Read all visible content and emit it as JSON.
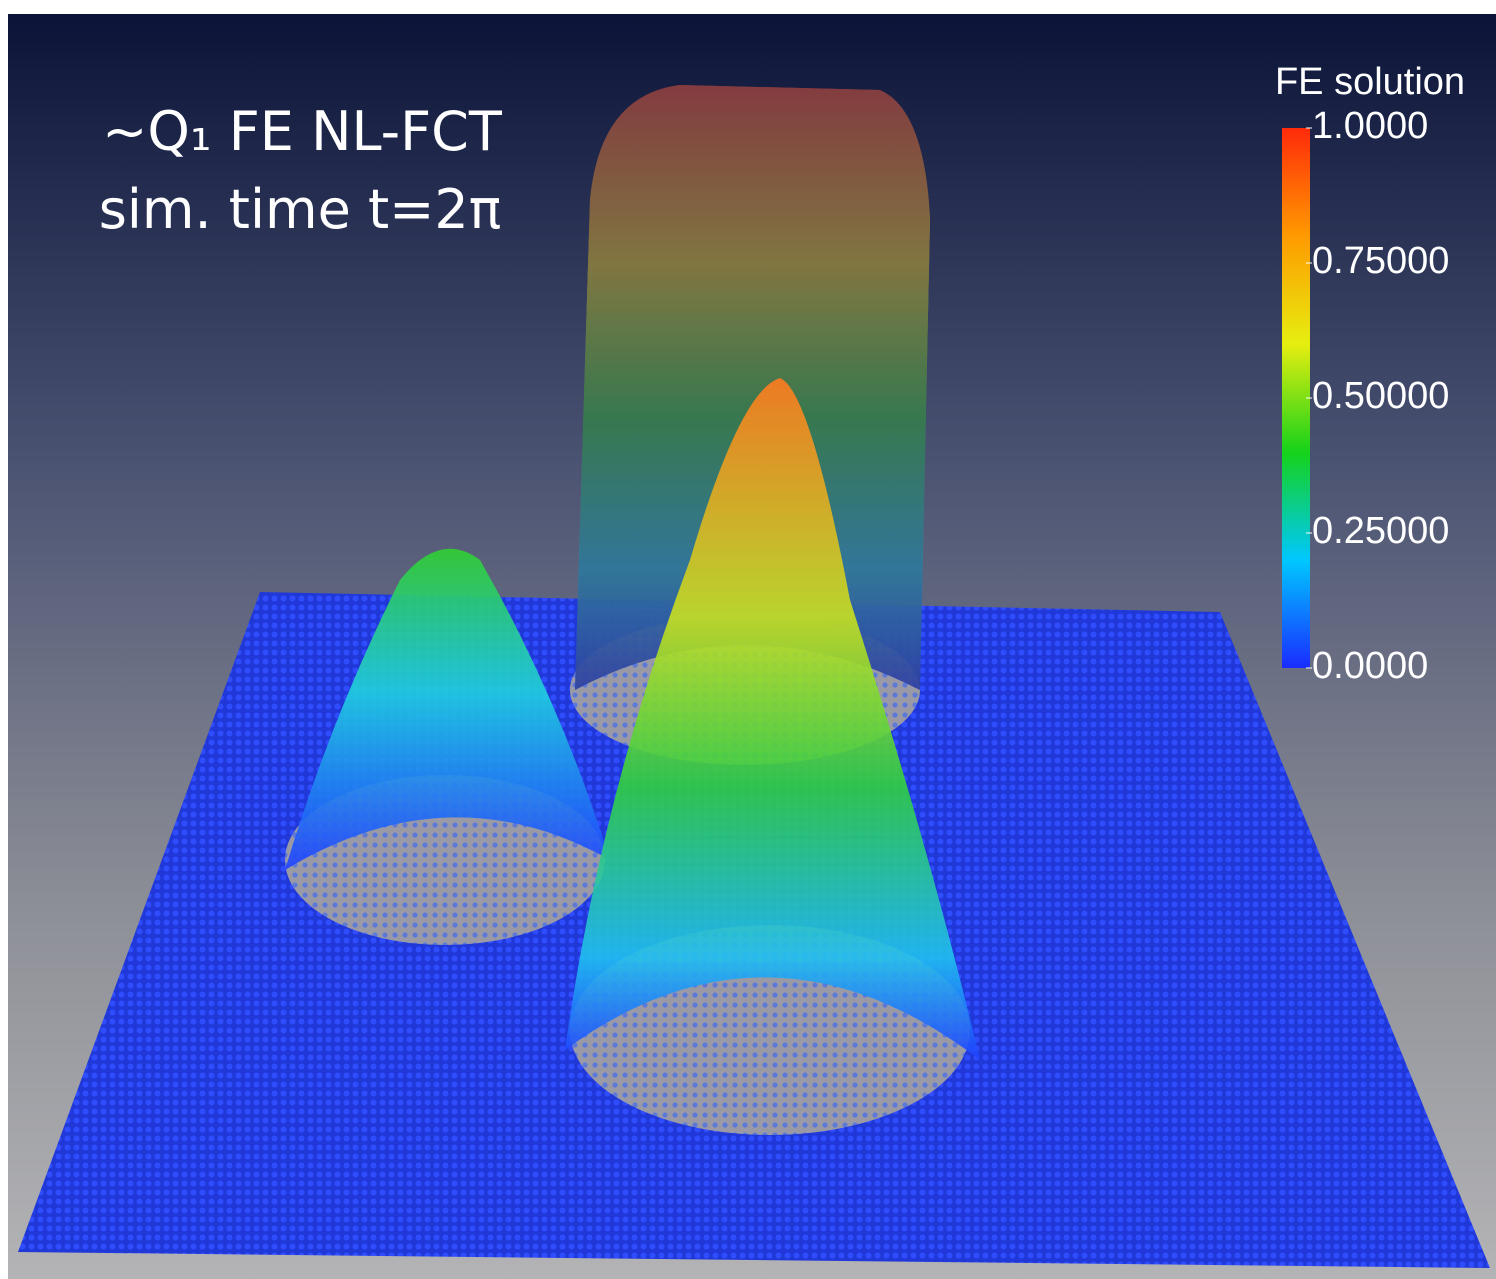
{
  "annotation": {
    "lines": [
      "~Q₁ FE NL-FCT",
      "sim. time t=2π"
    ]
  },
  "colorbar": {
    "title": "FE solution",
    "range": [
      0,
      1
    ],
    "colors": [
      "#1a2cff",
      "#00c8ff",
      "#16d21a",
      "#e6ee10",
      "#ff9a00",
      "#ff2a0a"
    ],
    "ticks": [
      {
        "value": 1,
        "label": "1.0000"
      },
      {
        "value": 0.75,
        "label": "0.75000"
      },
      {
        "value": 0.5,
        "label": "0.50000"
      },
      {
        "value": 0.25,
        "label": "0.25000"
      },
      {
        "value": 0,
        "label": "0.0000"
      }
    ]
  }
}
